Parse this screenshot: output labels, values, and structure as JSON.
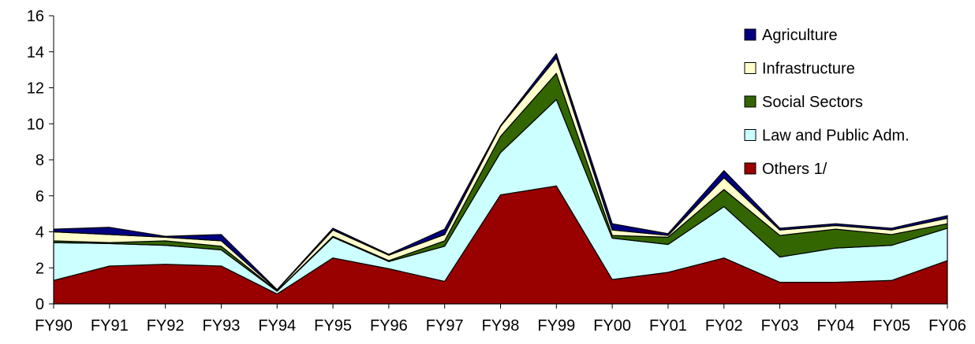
{
  "chart_data": {
    "type": "area",
    "stacked": true,
    "categories": [
      "FY90",
      "FY91",
      "FY92",
      "FY93",
      "FY94",
      "FY95",
      "FY96",
      "FY97",
      "FY98",
      "FY99",
      "FY00",
      "FY01",
      "FY02",
      "FY03",
      "FY04",
      "FY05",
      "FY06"
    ],
    "ylim": [
      0,
      16
    ],
    "yticks": [
      0,
      2,
      4,
      6,
      8,
      10,
      12,
      14,
      16
    ],
    "grid": false,
    "legend_position": "top-right",
    "series": [
      {
        "name": "Others 1/",
        "color": "#990000",
        "values": [
          1.3,
          2.1,
          2.2,
          2.1,
          0.55,
          2.55,
          1.95,
          1.25,
          6.05,
          6.55,
          1.35,
          1.75,
          2.55,
          1.2,
          1.2,
          1.3,
          2.4
        ]
      },
      {
        "name": "Law and Public Adm.",
        "color": "#CCFFFF",
        "values": [
          2.1,
          1.25,
          1.05,
          0.9,
          0.15,
          1.15,
          0.4,
          1.95,
          2.35,
          4.8,
          2.3,
          1.55,
          2.85,
          1.4,
          1.9,
          1.95,
          1.8
        ]
      },
      {
        "name": "Social Sectors",
        "color": "#336600",
        "values": [
          0.1,
          0.05,
          0.25,
          0.2,
          0.02,
          0.05,
          0.05,
          0.3,
          0.9,
          1.45,
          0.15,
          0.4,
          0.95,
          1.2,
          1.05,
          0.6,
          0.25
        ]
      },
      {
        "name": "Infrastructure",
        "color": "#FFFFCC",
        "values": [
          0.5,
          0.45,
          0.2,
          0.3,
          0.05,
          0.35,
          0.3,
          0.35,
          0.55,
          0.85,
          0.3,
          0.1,
          0.65,
          0.3,
          0.2,
          0.25,
          0.3
        ]
      },
      {
        "name": "Agriculture",
        "color": "#000080",
        "values": [
          0.15,
          0.4,
          0.05,
          0.35,
          0.02,
          0.1,
          0.05,
          0.3,
          0.05,
          0.25,
          0.35,
          0.1,
          0.4,
          0.1,
          0.1,
          0.1,
          0.15
        ]
      }
    ],
    "legend_order": [
      "Agriculture",
      "Infrastructure",
      "Social Sectors",
      "Law and Public Adm.",
      "Others 1/"
    ]
  }
}
